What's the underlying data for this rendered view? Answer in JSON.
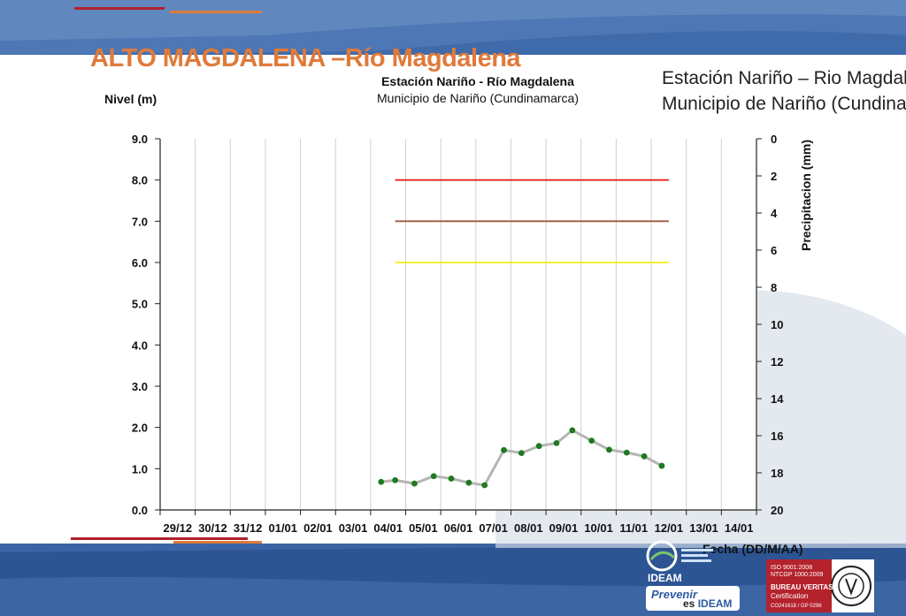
{
  "slide": {
    "title": "ALTO MAGDALENA –Río Magdalena",
    "side_line1": "Estación Nariño – Rio Magdal",
    "side_line2": "Municipio de Nariño (Cundina"
  },
  "logos": {
    "ideam_word": "IDEAM",
    "prevenir": "Prevenir",
    "es": "es",
    "es_ideam": "IDEAM",
    "bv_line1": "ISO 9001:2008",
    "bv_line2": "NTCGP 1000:2009",
    "bv_line3": "BUREAU VERITAS",
    "bv_line4": "Certification",
    "bv_line5": "CO241618 / GP 0296"
  },
  "colors": {
    "alert_red": "#e8231b",
    "alert_orange": "#9b5a3c",
    "alert_yellow": "#f5ef1a",
    "series_line": "#b5b5b5",
    "series_marker": "#1f7a1f",
    "header_blue": "#3f6bab",
    "title_orange": "#e07a3a"
  },
  "chart_data": {
    "type": "line",
    "title": "Estación Nariño  - Río Magdalena",
    "subtitle": "Municipio de Nariño (Cundinamarca)",
    "ylabel": "Nivel (m)",
    "y2label": "Precipitacion (mm)",
    "xlabel": "Fecha (DD/M/AA)",
    "ylim": [
      0,
      9
    ],
    "y_ticks": [
      "0.0",
      "1.0",
      "2.0",
      "3.0",
      "4.0",
      "5.0",
      "6.0",
      "7.0",
      "8.0",
      "9.0"
    ],
    "y2lim": [
      0,
      20
    ],
    "y2_inverted": true,
    "y2_ticks": [
      "0",
      "2",
      "4",
      "6",
      "8",
      "10",
      "12",
      "14",
      "16",
      "18",
      "20"
    ],
    "x_tick_labels": [
      "29/12",
      "30/12",
      "31/12",
      "01/01",
      "02/01",
      "03/01",
      "04/01",
      "05/01",
      "06/01",
      "07/01",
      "08/01",
      "09/01",
      "10/01",
      "11/01",
      "12/01",
      "13/01",
      "14/01"
    ],
    "grid": true,
    "thresholds": [
      {
        "value": 8.0,
        "from_day": 6.7,
        "to_day": 14.5,
        "color": "#e8231b"
      },
      {
        "value": 7.0,
        "from_day": 6.7,
        "to_day": 14.5,
        "color": "#9b5a3c"
      },
      {
        "value": 6.0,
        "from_day": 6.7,
        "to_day": 14.5,
        "color": "#f5ef1a"
      }
    ],
    "series": [
      {
        "x_day": [
          6.3,
          6.7,
          7.25,
          7.8,
          8.3,
          8.8,
          9.25,
          9.8,
          10.3,
          10.8,
          11.3,
          11.75,
          12.3,
          12.8,
          13.3,
          13.8,
          14.3
        ],
        "values": [
          0.68,
          0.72,
          0.64,
          0.82,
          0.76,
          0.66,
          0.6,
          1.45,
          1.38,
          1.55,
          1.62,
          1.93,
          1.68,
          1.46,
          1.39,
          1.3,
          1.07
        ]
      }
    ]
  }
}
